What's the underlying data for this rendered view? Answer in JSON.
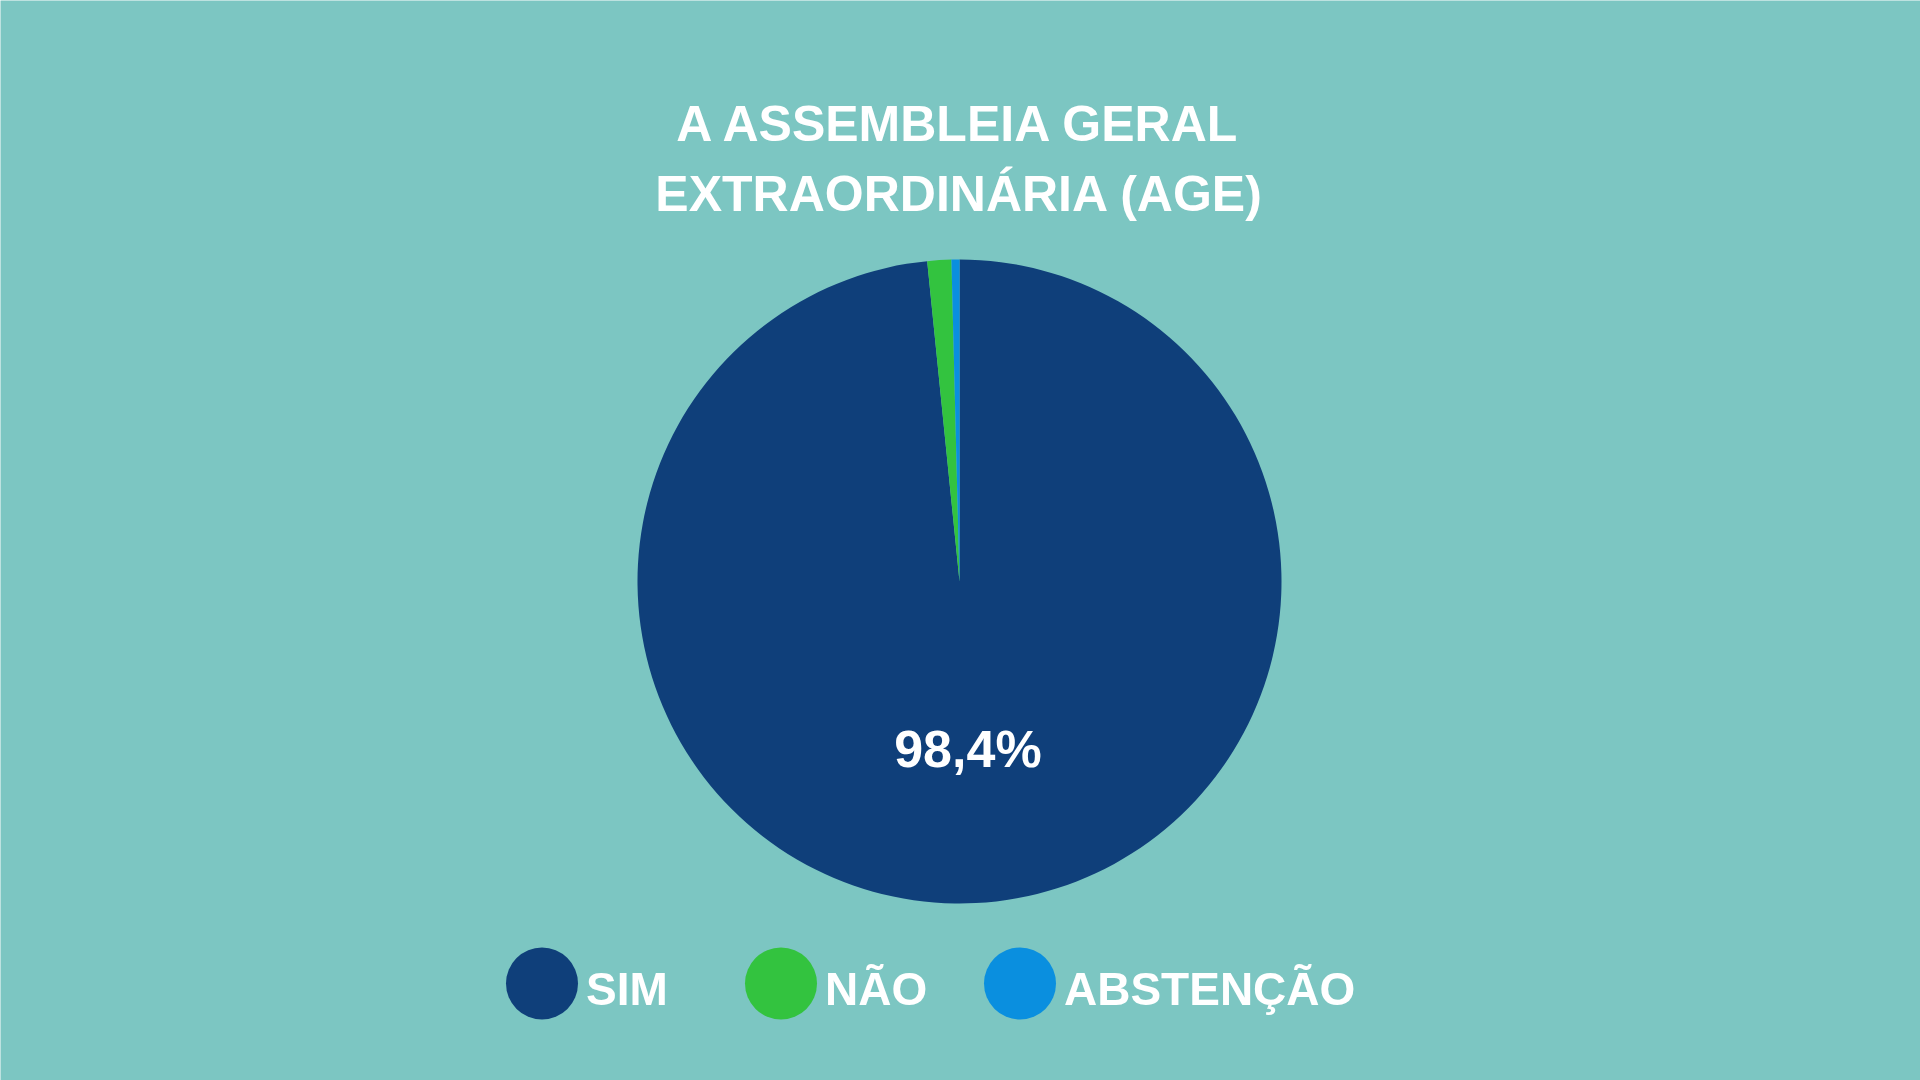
{
  "chart_data": {
    "type": "pie",
    "title": "A ASSEMBLEIA GERAL EXTRAORDINÁRIA (AGE)",
    "categories": [
      "SIM",
      "NÃO",
      "ABSTENÇÃO"
    ],
    "values": [
      98.4,
      1.2,
      0.4
    ],
    "colors": [
      "#0f3f7a",
      "#33c33f",
      "#0a8fdf"
    ],
    "value_labels": [
      "98,4%",
      null,
      null
    ],
    "legend": "bottom"
  }
}
